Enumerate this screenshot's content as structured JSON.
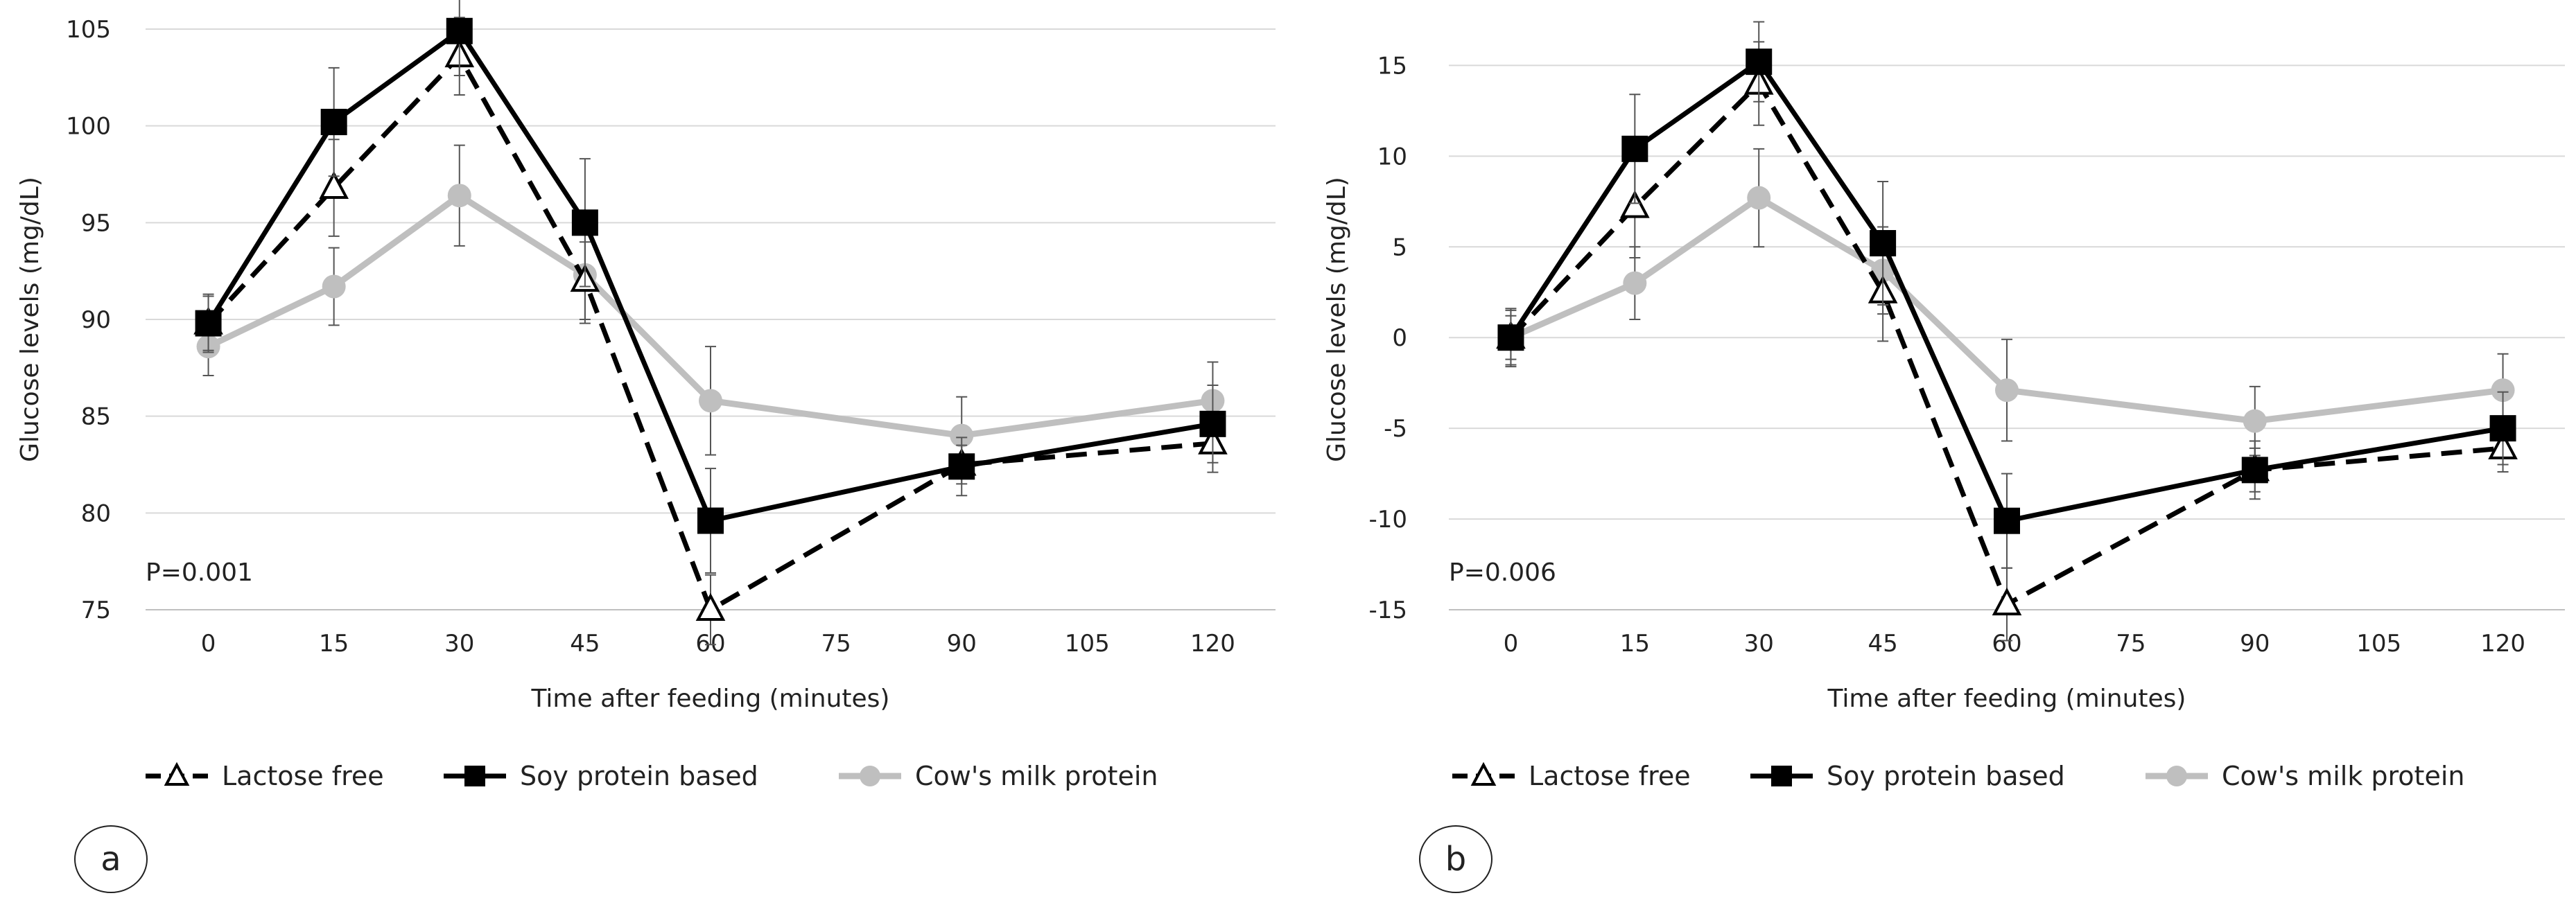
{
  "chart_data": [
    {
      "panel_label": "a",
      "type": "line",
      "ylabel": "Glucose levels (mg/dL)",
      "xlabel": "Time after feeding (minutes)",
      "x_ticks": [
        0,
        15,
        30,
        45,
        60,
        75,
        90,
        105,
        120
      ],
      "y_ticks": [
        75,
        80,
        85,
        90,
        95,
        100,
        105
      ],
      "ylim": [
        75,
        105
      ],
      "xlim": [
        -7.5,
        127.5
      ],
      "annotation": "P=0.001",
      "grid": "horizontal",
      "series": [
        {
          "name": "Lactose free",
          "color": "#000000",
          "style": "dashed",
          "marker": "open-triangle",
          "x": [
            0,
            15,
            30,
            45,
            60,
            90,
            120
          ],
          "y": [
            89.8,
            96.8,
            103.6,
            92.0,
            75.0,
            82.5,
            83.6
          ],
          "err": [
            1.5,
            2.5,
            2.0,
            2.0,
            1.8,
            1.0,
            1.5
          ]
        },
        {
          "name": "Soy protein based",
          "color": "#000000",
          "style": "solid",
          "marker": "filled-square",
          "x": [
            0,
            15,
            30,
            45,
            60,
            90,
            120
          ],
          "y": [
            89.8,
            100.2,
            104.9,
            95.0,
            79.6,
            82.4,
            84.6
          ],
          "err": [
            1.4,
            2.8,
            2.3,
            3.3,
            2.7,
            1.5,
            2.0
          ]
        },
        {
          "name": "Cow's milk protein",
          "color": "#bfbfbf",
          "style": "solid",
          "marker": "filled-circle",
          "x": [
            0,
            15,
            30,
            45,
            60,
            90,
            120
          ],
          "y": [
            88.6,
            91.7,
            96.4,
            92.3,
            85.8,
            84.0,
            85.8
          ],
          "err": [
            1.5,
            2.0,
            2.6,
            2.5,
            2.8,
            2.0,
            2.0
          ]
        }
      ]
    },
    {
      "panel_label": "b",
      "type": "line",
      "ylabel": "Glucose levels (mg/dL)",
      "xlabel": "Time after feeding (minutes)",
      "x_ticks": [
        0,
        15,
        30,
        45,
        60,
        75,
        90,
        105,
        120
      ],
      "y_ticks": [
        -15,
        -10,
        -5,
        0,
        5,
        10,
        15
      ],
      "ylim": [
        -15,
        17
      ],
      "xlim": [
        -7.5,
        127.5
      ],
      "annotation": "P=0.006",
      "grid": "horizontal",
      "series": [
        {
          "name": "Lactose free",
          "color": "#000000",
          "style": "dashed",
          "marker": "open-triangle",
          "x": [
            0,
            15,
            30,
            45,
            60,
            90,
            120
          ],
          "y": [
            0,
            7.2,
            14.0,
            2.5,
            -14.7,
            -7.3,
            -6.1
          ],
          "err": [
            1.5,
            2.8,
            2.3,
            2.7,
            2.0,
            1.2,
            1.3
          ]
        },
        {
          "name": "Soy protein based",
          "color": "#000000",
          "style": "solid",
          "marker": "filled-square",
          "x": [
            0,
            15,
            30,
            45,
            60,
            90,
            120
          ],
          "y": [
            0,
            10.4,
            15.2,
            5.2,
            -10.1,
            -7.3,
            -5.0
          ],
          "err": [
            1.2,
            3.0,
            2.2,
            3.4,
            2.6,
            1.6,
            2.0
          ]
        },
        {
          "name": "Cow's milk protein",
          "color": "#bfbfbf",
          "style": "solid",
          "marker": "filled-circle",
          "x": [
            0,
            15,
            30,
            45,
            60,
            90,
            120
          ],
          "y": [
            0,
            3.0,
            7.7,
            3.7,
            -2.9,
            -4.6,
            -2.9
          ],
          "err": [
            1.6,
            2.0,
            2.7,
            2.4,
            2.8,
            1.9,
            2.0
          ]
        }
      ]
    }
  ],
  "legend": {
    "items": [
      "Lactose free",
      "Soy protein based",
      "Cow's milk protein"
    ]
  }
}
